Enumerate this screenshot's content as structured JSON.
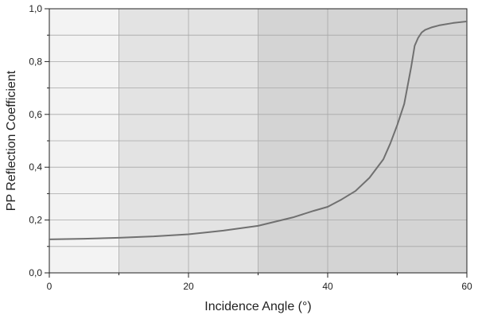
{
  "chart_data": {
    "type": "line",
    "title": "",
    "xlabel": "Incidence Angle (°)",
    "ylabel": "PP Reflection Coefficient",
    "xlim": [
      0,
      60
    ],
    "ylim": [
      0,
      1
    ],
    "grid": true,
    "x_ticks": [
      0,
      20,
      40,
      60
    ],
    "y_ticks": [
      0.0,
      0.2,
      0.4,
      0.6,
      0.8,
      1.0
    ],
    "x_tick_labels": [
      "0",
      "20",
      "40",
      "60"
    ],
    "y_tick_labels": [
      "0,0",
      "0,2",
      "0,4",
      "0,6",
      "0,8",
      "1,0"
    ],
    "background_bands": [
      {
        "x_start": 0,
        "x_end": 10,
        "color": "#f3f3f3"
      },
      {
        "x_start": 10,
        "x_end": 30,
        "color": "#e3e3e3"
      },
      {
        "x_start": 30,
        "x_end": 60,
        "color": "#d4d4d4"
      }
    ],
    "series": [
      {
        "color": "#707070",
        "x": [
          0,
          5,
          10,
          15,
          20,
          25,
          30,
          35,
          38,
          40,
          42,
          44,
          46,
          48,
          49,
          50,
          51,
          51.5,
          52,
          52.5,
          53,
          53.5,
          54,
          55,
          56,
          58,
          60
        ],
        "y": [
          0.127,
          0.129,
          0.133,
          0.138,
          0.146,
          0.16,
          0.178,
          0.21,
          0.235,
          0.25,
          0.278,
          0.31,
          0.36,
          0.43,
          0.49,
          0.56,
          0.64,
          0.71,
          0.78,
          0.86,
          0.89,
          0.91,
          0.92,
          0.93,
          0.937,
          0.946,
          0.952
        ]
      }
    ]
  }
}
